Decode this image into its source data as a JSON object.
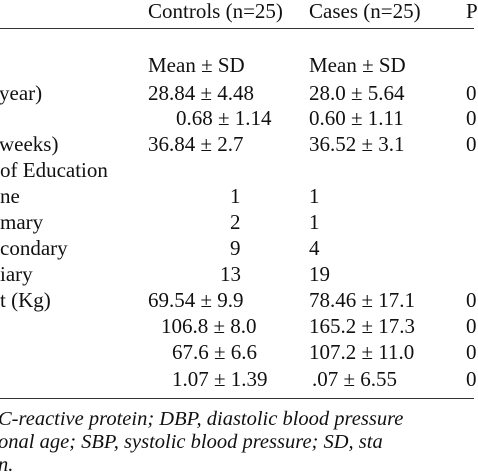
{
  "table": {
    "headers": [
      "",
      "Controls (n=25)",
      "Cases (n=25)",
      "P"
    ],
    "subheader": [
      "",
      "Mean ± SD",
      "Mean ± SD",
      ""
    ],
    "rows": [
      {
        "label": "year)",
        "controls": "28.84 ± 4.48",
        "cases": "28.0 ± 5.64",
        "p": "0"
      },
      {
        "label": "",
        "controls": "0.68 ± 1.14",
        "cases": "0.60 ± 1.11",
        "p": "0"
      },
      {
        "label": "weeks)",
        "controls": "36.84 ± 2.7",
        "cases": "36.52 ± 3.1",
        "p": "0"
      },
      {
        "label": "of Education",
        "controls": "",
        "cases": "",
        "p": ""
      },
      {
        "label": "ne",
        "controls": "1",
        "cases": "1",
        "p": ""
      },
      {
        "label": "mary",
        "controls": "2",
        "cases": "1",
        "p": ""
      },
      {
        "label": "condary",
        "controls": "9",
        "cases": "4",
        "p": ""
      },
      {
        "label": "iary",
        "controls": "13",
        "cases": "19",
        "p": ""
      },
      {
        "label": "t (Kg)",
        "controls": "69.54 ± 9.9",
        "cases": "78.46 ± 17.1",
        "p": "0"
      },
      {
        "label": "",
        "controls": "106.8 ± 8.0",
        "cases": "165.2 ± 17.3",
        "p": "0"
      },
      {
        "label": "",
        "controls": "67.6 ± 6.6",
        "cases": "107.2 ± 11.0",
        "p": "0"
      },
      {
        "label": "",
        "controls": "1.07 ± 1.39",
        "cases": ".07 ± 6.55",
        "p": "0"
      }
    ]
  },
  "footnote": {
    "line1": "C-reactive  protein;  DBP,  diastolic  blood  pressure",
    "line2": "onal  age;  SBP,  systolic  blood  pressure;  SD,  sta",
    "line3": "n."
  }
}
